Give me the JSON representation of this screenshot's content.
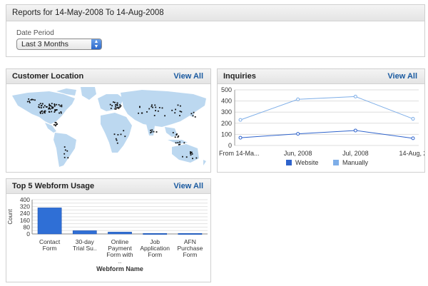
{
  "report": {
    "title": "Reports for 14-May-2008 To 14-Aug-2008",
    "date_period_label": "Date Period",
    "date_period_value": "Last 3 Months"
  },
  "location": {
    "title": "Customer Location",
    "view_all": "View All"
  },
  "inquiries": {
    "title": "Inquiries",
    "view_all": "View All",
    "legend_website": "Website",
    "legend_manually": "Manually"
  },
  "webform": {
    "title": "Top 5 Webform Usage",
    "view_all": "View All"
  },
  "colors": {
    "website": "#2e63cc",
    "manually": "#7eaee8",
    "bar": "#2f6fd6",
    "map_land": "#bcd8f0",
    "link": "#1a5aa0"
  },
  "chart_data": [
    {
      "type": "line",
      "title": "Inquiries",
      "categories": [
        "From 14-Ma...",
        "Jun, 2008",
        "Jul, 2008",
        "14-Aug, 2"
      ],
      "ylim": [
        0,
        500
      ],
      "yticks": [
        0,
        100,
        200,
        300,
        400,
        500
      ],
      "grid": true,
      "legend": "bottom",
      "series": [
        {
          "name": "Website",
          "values": [
            70,
            105,
            135,
            65
          ]
        },
        {
          "name": "Manually",
          "values": [
            230,
            415,
            440,
            240
          ]
        }
      ]
    },
    {
      "type": "bar",
      "title": "Top 5 Webform Usage",
      "xlabel": "Webform Name",
      "ylabel": "Count",
      "ylim": [
        0,
        400
      ],
      "yticks": [
        0,
        80,
        160,
        240,
        320,
        400
      ],
      "yticks_shown": [
        0,
        40,
        80,
        120,
        160,
        200,
        240,
        280,
        320,
        360,
        400
      ],
      "grid": true,
      "categories": [
        [
          "Contact",
          "Form"
        ],
        [
          "30-day",
          "Trial Su.."
        ],
        [
          "Online",
          "Payment",
          "Form with",
          ".."
        ],
        [
          "Job",
          "Application",
          "Form"
        ],
        [
          "AFN",
          "Purchase",
          "Form"
        ]
      ],
      "values": [
        305,
        38,
        22,
        6,
        6
      ]
    }
  ]
}
